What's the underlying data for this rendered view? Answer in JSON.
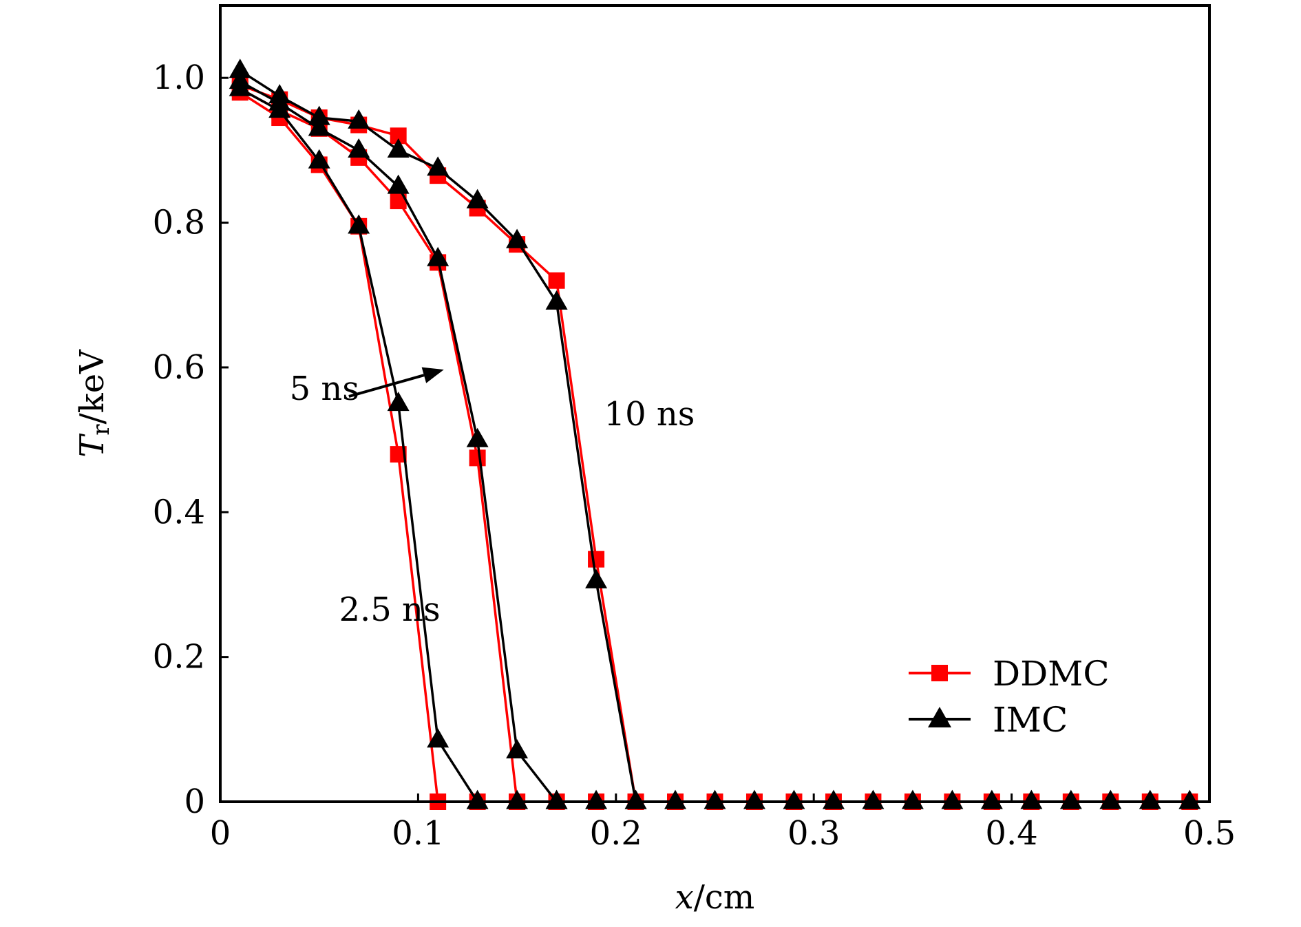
{
  "chart_data": {
    "type": "line",
    "xlabel_main": "x",
    "xlabel_unit": "/cm",
    "ylabel_main": "T",
    "ylabel_sub": "r",
    "ylabel_unit": "/keV",
    "xlim": [
      0,
      0.5
    ],
    "ylim": [
      0,
      1.1
    ],
    "xticks": [
      0,
      0.1,
      0.2,
      0.3,
      0.4,
      0.5
    ],
    "xtick_labels": [
      "0",
      "0.1",
      "0.2",
      "0.3",
      "0.4",
      "0.5"
    ],
    "yticks": [
      0,
      0.2,
      0.4,
      0.6,
      0.8,
      1.0
    ],
    "ytick_labels": [
      "0",
      "0.2",
      "0.4",
      "0.6",
      "0.8",
      "1.0"
    ],
    "grid": false,
    "legend_position": "bottom-right",
    "legend": [
      {
        "label": "DDMC",
        "color": "#ff0000",
        "marker": "square"
      },
      {
        "label": "IMC",
        "color": "#000000",
        "marker": "triangle"
      }
    ],
    "annotations": [
      {
        "text": "2.5 ns",
        "x": 0.06,
        "y": 0.25
      },
      {
        "text": "5 ns",
        "x": 0.035,
        "y": 0.555
      },
      {
        "text": "10 ns",
        "x": 0.194,
        "y": 0.52
      }
    ],
    "arrow": {
      "from": [
        0.065,
        0.56
      ],
      "to": [
        0.113,
        0.597
      ]
    },
    "series": [
      {
        "method": "DDMC",
        "time": "2.5 ns",
        "color": "#ff0000",
        "marker": "square",
        "x": [
          0.01,
          0.03,
          0.05,
          0.07,
          0.09,
          0.11,
          0.13,
          0.15,
          0.17,
          0.19,
          0.21,
          0.23,
          0.25,
          0.27,
          0.29,
          0.31,
          0.33,
          0.35,
          0.37,
          0.39,
          0.41,
          0.43,
          0.45,
          0.47,
          0.49
        ],
        "y": [
          0.98,
          0.945,
          0.88,
          0.795,
          0.48,
          0.0,
          0,
          0,
          0,
          0,
          0,
          0,
          0,
          0,
          0,
          0,
          0,
          0,
          0,
          0,
          0,
          0,
          0,
          0,
          0
        ]
      },
      {
        "method": "DDMC",
        "time": "5 ns",
        "color": "#ff0000",
        "marker": "square",
        "x": [
          0.01,
          0.03,
          0.05,
          0.07,
          0.09,
          0.11,
          0.13,
          0.15,
          0.17
        ],
        "y": [
          0.985,
          0.955,
          0.93,
          0.89,
          0.83,
          0.745,
          0.475,
          0.0,
          0.0
        ]
      },
      {
        "method": "DDMC",
        "time": "10 ns",
        "color": "#ff0000",
        "marker": "square",
        "x": [
          0.01,
          0.03,
          0.05,
          0.07,
          0.09,
          0.11,
          0.13,
          0.15,
          0.17,
          0.19,
          0.21
        ],
        "y": [
          0.99,
          0.97,
          0.945,
          0.935,
          0.92,
          0.865,
          0.82,
          0.77,
          0.72,
          0.335,
          0.0
        ]
      },
      {
        "method": "IMC",
        "time": "2.5 ns",
        "color": "#000000",
        "marker": "triangle",
        "x": [
          0.01,
          0.03,
          0.05,
          0.07,
          0.09,
          0.11,
          0.13,
          0.15,
          0.17,
          0.19,
          0.21,
          0.23,
          0.25,
          0.27,
          0.29,
          0.31,
          0.33,
          0.35,
          0.37,
          0.39,
          0.41,
          0.43,
          0.45,
          0.47,
          0.49
        ],
        "y": [
          0.985,
          0.955,
          0.885,
          0.795,
          0.55,
          0.085,
          0.0,
          0,
          0,
          0,
          0,
          0,
          0,
          0,
          0,
          0,
          0,
          0,
          0,
          0,
          0,
          0,
          0,
          0,
          0
        ]
      },
      {
        "method": "IMC",
        "time": "5 ns",
        "color": "#000000",
        "marker": "triangle",
        "x": [
          0.01,
          0.03,
          0.05,
          0.07,
          0.09,
          0.11,
          0.13,
          0.15,
          0.17
        ],
        "y": [
          0.995,
          0.965,
          0.93,
          0.9,
          0.85,
          0.75,
          0.5,
          0.07,
          0.0
        ]
      },
      {
        "method": "IMC",
        "time": "10 ns",
        "color": "#000000",
        "marker": "triangle",
        "x": [
          0.01,
          0.03,
          0.05,
          0.07,
          0.09,
          0.11,
          0.13,
          0.15,
          0.17,
          0.19,
          0.21
        ],
        "y": [
          1.01,
          0.975,
          0.945,
          0.94,
          0.9,
          0.875,
          0.83,
          0.775,
          0.69,
          0.305,
          0.0
        ]
      }
    ]
  }
}
